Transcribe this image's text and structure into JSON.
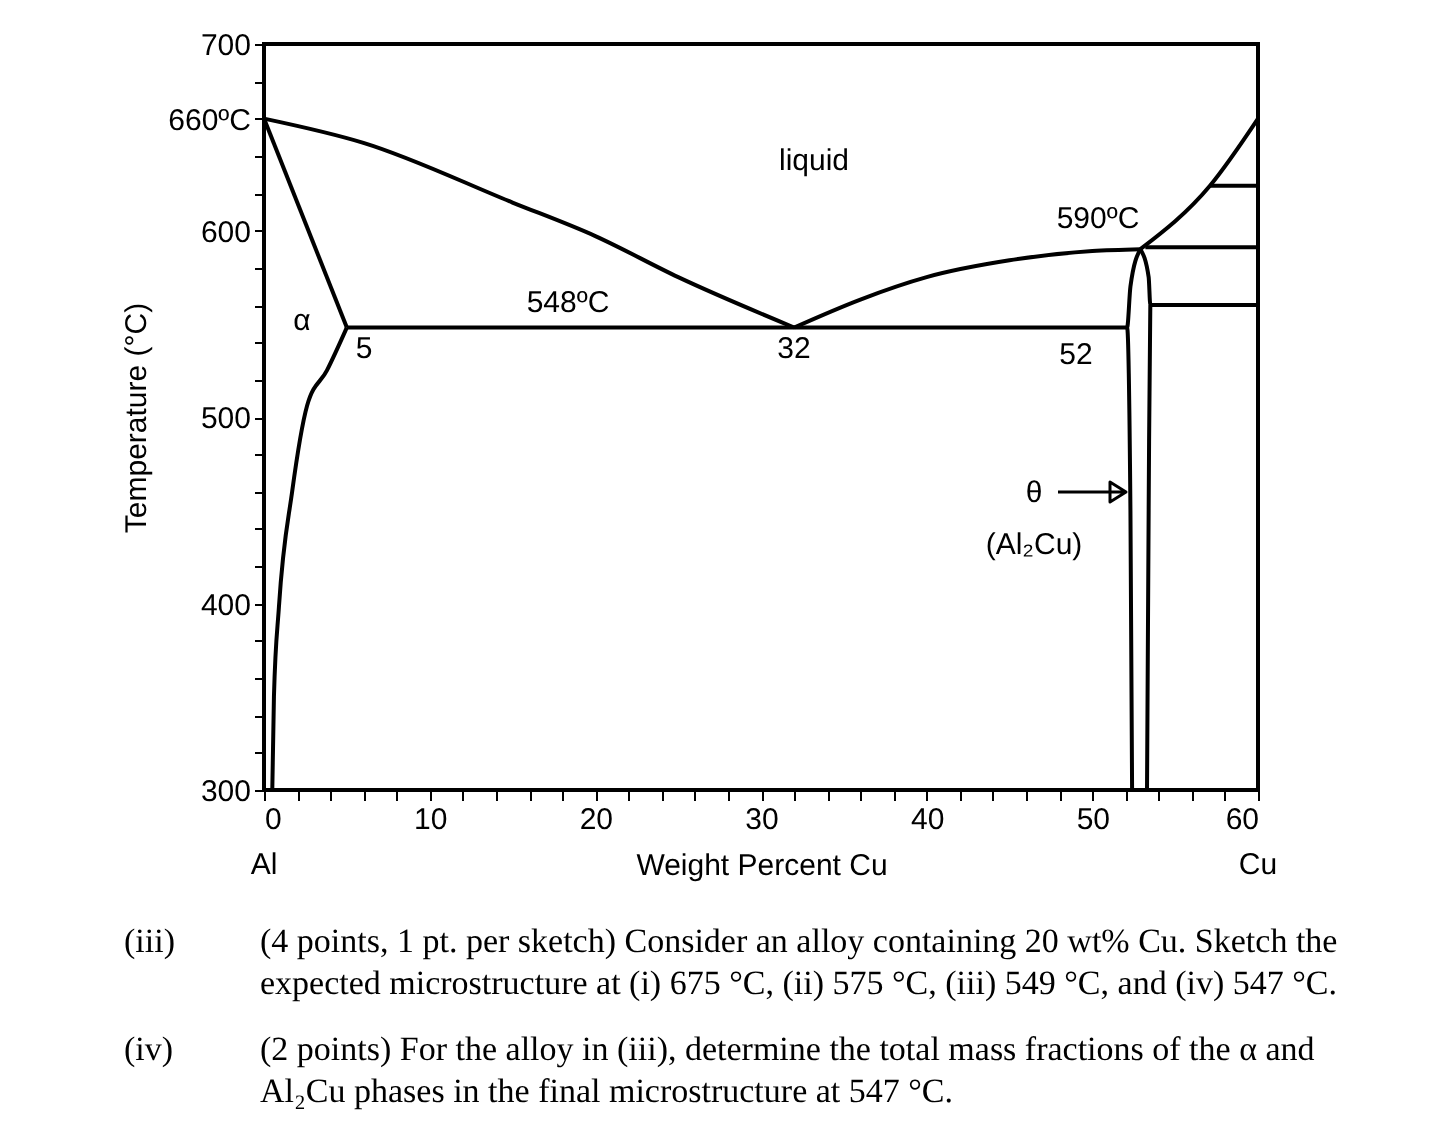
{
  "chart_data": {
    "type": "line",
    "xlabel": "Weight Percent Cu",
    "ylabel": "Temperature (°C)",
    "xlim": [
      0,
      60
    ],
    "ylim": [
      300,
      700
    ],
    "xticks": [
      0,
      {
        "value": 2,
        "label": null
      },
      {
        "value": 4,
        "label": null
      },
      {
        "value": 6,
        "label": null
      },
      {
        "value": 8,
        "label": null
      },
      10,
      {
        "value": 12,
        "label": null
      },
      {
        "value": 14,
        "label": null
      },
      {
        "value": 16,
        "label": null
      },
      {
        "value": 18,
        "label": null
      },
      20,
      {
        "value": 22,
        "label": null
      },
      {
        "value": 24,
        "label": null
      },
      {
        "value": 26,
        "label": null
      },
      {
        "value": 28,
        "label": null
      },
      30,
      {
        "value": 32,
        "label": null
      },
      {
        "value": 34,
        "label": null
      },
      {
        "value": 36,
        "label": null
      },
      {
        "value": 38,
        "label": null
      },
      40,
      {
        "value": 42,
        "label": null
      },
      {
        "value": 44,
        "label": null
      },
      {
        "value": 46,
        "label": null
      },
      {
        "value": 48,
        "label": null
      },
      50,
      {
        "value": 52,
        "label": null
      },
      {
        "value": 54,
        "label": null
      },
      {
        "value": 56,
        "label": null
      },
      {
        "value": 58,
        "label": null
      },
      60
    ],
    "yticks": [
      300,
      {
        "value": 320,
        "label": null
      },
      {
        "value": 340,
        "label": null
      },
      {
        "value": 360,
        "label": null
      },
      {
        "value": 380,
        "label": null
      },
      400,
      {
        "value": 420,
        "label": null
      },
      {
        "value": 440,
        "label": null
      },
      {
        "value": 460,
        "label": null
      },
      {
        "value": 480,
        "label": null
      },
      500,
      {
        "value": 520,
        "label": null
      },
      {
        "value": 540,
        "label": null
      },
      {
        "value": 560,
        "label": null
      },
      {
        "value": 580,
        "label": null
      },
      600,
      {
        "value": 620,
        "label": null
      },
      {
        "value": 640,
        "label": null
      },
      {
        "value": 660,
        "label": "660ºC"
      },
      {
        "value": 680,
        "label": null
      },
      700
    ],
    "grid": false,
    "marker": "none",
    "line_style": "solid",
    "series": [
      {
        "color": "#000000",
        "x": [
          0,
          6,
          15,
          20,
          25,
          32
        ],
        "values": [
          660,
          647,
          615,
          597,
          575,
          548
        ]
      },
      {
        "color": "#000000",
        "x": [
          0,
          5
        ],
        "values": [
          660,
          548
        ]
      },
      {
        "color": "#000000",
        "x": [
          5,
          3.8,
          2.6,
          1.7,
          0.9,
          0.6,
          0.5
        ],
        "values": [
          548,
          525,
          506,
          460,
          398,
          350,
          300
        ]
      },
      {
        "color": "#000000",
        "x": [
          5,
          52.1
        ],
        "values": [
          548,
          548
        ]
      },
      {
        "color": "#000000",
        "x": [
          32,
          36,
          40,
          45,
          50,
          52.9
        ],
        "values": [
          548,
          563,
          575,
          584,
          589,
          590
        ]
      },
      {
        "color": "#000000",
        "x": [
          52.9,
          52.3,
          52.1,
          52.3,
          52.4
        ],
        "values": [
          590,
          570,
          548,
          450,
          300
        ]
      },
      {
        "color": "#000000",
        "x": [
          52.9,
          53.4,
          53.5,
          53.4,
          53.3
        ],
        "values": [
          590,
          575,
          560,
          450,
          300
        ]
      },
      {
        "color": "#000000",
        "x": [
          52.9,
          57.1,
          60
        ],
        "values": [
          590,
          624,
          660
        ]
      },
      {
        "color": "#000000",
        "x": [
          57.1,
          60
        ],
        "values": [
          624,
          624
        ]
      },
      {
        "color": "#000000",
        "x": [
          53.2,
          60
        ],
        "values": [
          591,
          591
        ]
      },
      {
        "color": "#000000",
        "x": [
          53.5,
          60
        ],
        "values": [
          560,
          560
        ]
      }
    ],
    "annotations": [
      "liquid",
      "590ºC",
      "548ºC",
      "α",
      "5",
      "32",
      "52",
      "θ",
      "(Al₂Cu)",
      "Al",
      "Cu",
      "(iii)",
      "(4 points, 1 pt. per sketch) Consider an alloy containing 20 wt% Cu. Sketch the expected microstructure at (i) 675 °C, (ii) 575 °C, (iii) 549 °C, and (iv) 547 °C.",
      "(iv)",
      "(2 points) For the alloy in (iii), determine the total mass fractions of the α and Al₂Cu phases in the final microstructure at 547 °C."
    ]
  }
}
